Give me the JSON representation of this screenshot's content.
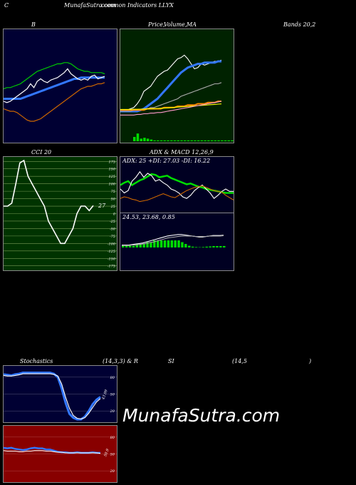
{
  "header": {
    "corner": "C",
    "site": "MunafaSutra.com",
    "overlay": "common Indicators LLYX"
  },
  "titles": {
    "bb": "B",
    "price_a": "Price,",
    "price_b": "Volume,",
    "price_c": "MA",
    "bands": "Bands 20,2",
    "cci": "CCI 20",
    "adx_macd": "ADX  & MACD 12,26,9",
    "stoch": "Stochastics",
    "stoch_params": "(14,3,3) & R",
    "rsi": "SI",
    "rsi_params": "(14,5",
    "rsi_close": ")"
  },
  "watermark": "MunafaSutra.com",
  "colors": {
    "bb_bg": "#000033",
    "price_bg": "#002200",
    "cci_bg": "#003300",
    "adx_bg": "#000022",
    "stoch_bg": "#000033",
    "rsi_bg": "#880000",
    "green": "#00dd00",
    "blue": "#3377ff",
    "orange": "#cc6600"
  },
  "chart_data": [
    {
      "id": "bollinger",
      "type": "line",
      "title": "B",
      "x": [
        0,
        1,
        2,
        3,
        4,
        5,
        6,
        7,
        8,
        9,
        10,
        11,
        12,
        13,
        14,
        15,
        16,
        17,
        18,
        19,
        20,
        21,
        22,
        23,
        24,
        25,
        26,
        27,
        28,
        29,
        30
      ],
      "series": [
        {
          "key": "upper",
          "values": [
            78,
            79,
            79,
            80,
            81,
            82,
            84,
            86,
            88,
            90,
            92,
            93,
            94,
            95,
            96,
            97,
            98,
            98,
            99,
            99,
            98,
            96,
            94,
            93,
            92,
            92,
            91,
            91,
            91,
            91,
            90
          ],
          "color": "#00cc00"
        },
        {
          "key": "lower",
          "values": [
            62,
            61,
            60,
            60,
            59,
            57,
            55,
            53,
            52,
            52,
            53,
            54,
            56,
            58,
            60,
            62,
            64,
            66,
            68,
            70,
            72,
            74,
            76,
            78,
            79,
            80,
            80,
            81,
            82,
            82,
            83
          ],
          "color": "#cc6600"
        },
        {
          "key": "middle",
          "values": [
            70,
            70,
            70,
            70,
            70,
            70,
            71,
            72,
            73,
            74,
            75,
            76,
            77,
            78,
            79,
            80,
            81,
            82,
            83,
            84,
            85,
            86,
            86,
            87,
            87,
            87,
            87,
            87,
            87,
            87,
            87
          ],
          "color": "#3377ff"
        },
        {
          "key": "price",
          "values": [
            68,
            67,
            68,
            70,
            72,
            74,
            76,
            78,
            82,
            79,
            84,
            86,
            84,
            83,
            85,
            86,
            87,
            89,
            91,
            94,
            90,
            88,
            86,
            85,
            86,
            85,
            88,
            89,
            86,
            87,
            88
          ],
          "color": "#ffffff"
        }
      ]
    },
    {
      "id": "price_ma",
      "type": "line",
      "title": "Price, Volume, MA",
      "x": [
        0,
        1,
        2,
        3,
        4,
        5,
        6,
        7,
        8,
        9,
        10,
        11,
        12,
        13,
        14,
        15,
        16,
        17,
        18,
        19,
        20,
        21,
        22,
        23,
        24,
        25,
        26,
        27,
        28,
        29,
        30
      ],
      "series": [
        {
          "key": "price",
          "values": [
            60,
            60,
            61,
            62,
            63,
            66,
            70,
            76,
            78,
            80,
            84,
            88,
            90,
            92,
            93,
            96,
            99,
            102,
            103,
            105,
            102,
            98,
            94,
            95,
            98,
            97,
            98,
            99,
            100,
            100,
            101
          ],
          "color": "#ffffff"
        },
        {
          "key": "ma_short",
          "values": [
            60,
            60,
            60,
            60,
            60,
            60,
            61,
            62,
            64,
            66,
            68,
            70,
            73,
            76,
            79,
            82,
            85,
            88,
            91,
            93,
            95,
            96,
            97,
            98,
            98,
            99,
            99,
            99,
            99,
            100,
            100
          ],
          "color": "#3377ff"
        },
        {
          "key": "ma_mid",
          "values": [
            60,
            60,
            60,
            60,
            61,
            61,
            61,
            62,
            62,
            63,
            63,
            64,
            65,
            66,
            67,
            68,
            69,
            70,
            72,
            73,
            74,
            75,
            76,
            77,
            78,
            79,
            80,
            81,
            82,
            82,
            83
          ],
          "color": "#aaaaaa"
        },
        {
          "key": "ma_orange",
          "values": [
            61,
            61,
            61,
            61,
            61,
            61,
            61,
            61,
            62,
            62,
            62,
            62,
            62,
            63,
            63,
            63,
            63,
            64,
            64,
            64,
            65,
            65,
            65,
            66,
            66,
            66,
            67,
            67,
            67,
            68,
            68
          ],
          "color": "#ff8800"
        },
        {
          "key": "ma_yellow",
          "values": [
            61.5,
            61.5,
            61.5,
            61.5,
            61.6,
            61.6,
            61.7,
            61.8,
            61.9,
            62,
            62.1,
            62.3,
            62.4,
            62.5,
            62.7,
            62.9,
            63.1,
            63.3,
            63.5,
            63.7,
            63.9,
            64.1,
            64.3,
            64.5,
            64.7,
            64.9,
            65.1,
            65.3,
            65.5,
            65.7,
            65.9
          ],
          "color": "#ffff00"
        },
        {
          "key": "ma_pink",
          "values": [
            57,
            57,
            57,
            57,
            57,
            57.5,
            57.5,
            58,
            58,
            58.5,
            58.5,
            59,
            59,
            59.5,
            60,
            60.5,
            61,
            61.5,
            62,
            62.5,
            63,
            63.5,
            64,
            64.5,
            65,
            65.5,
            66,
            66.5,
            67,
            67.5,
            68
          ],
          "color": "#ff99cc"
        }
      ],
      "volume": [
        5,
        9,
        3,
        4,
        3,
        2,
        1,
        1,
        1,
        1,
        1,
        1,
        1,
        1,
        1,
        1,
        1,
        1,
        1,
        1,
        1,
        1,
        1,
        1,
        1,
        1,
        1,
        1,
        1,
        1,
        1
      ]
    },
    {
      "id": "cci",
      "type": "line",
      "title": "CCI 20",
      "ylim": [
        -190,
        190
      ],
      "ticks": [
        175,
        150,
        125,
        100,
        75,
        50,
        25,
        0,
        -25,
        -50,
        -75,
        -100,
        -125,
        -150,
        -175
      ],
      "values": [
        25,
        25,
        35,
        100,
        170,
        178,
        125,
        100,
        75,
        50,
        25,
        -25,
        -50,
        -75,
        -100,
        -100,
        -75,
        -50,
        0,
        25,
        25,
        10,
        27
      ],
      "last_label": "27"
    },
    {
      "id": "adx",
      "type": "line",
      "title": "ADX: 25 +DI: 27.03 -DI: 16.22",
      "series": [
        {
          "key": "adx",
          "values": [
            35,
            38,
            40,
            35,
            38,
            41,
            43,
            46,
            49,
            48,
            45,
            46,
            47,
            44,
            42,
            40,
            38,
            36,
            37,
            35,
            33,
            32,
            30,
            29,
            28,
            27,
            26,
            25,
            25,
            25
          ],
          "color": "#00dd00"
        },
        {
          "key": "plus_di",
          "values": [
            30,
            25,
            28,
            40,
            45,
            52,
            45,
            50,
            47,
            40,
            42,
            38,
            35,
            30,
            28,
            25,
            20,
            18,
            22,
            28,
            32,
            35,
            30,
            25,
            18,
            22,
            27,
            30,
            27,
            27
          ],
          "color": "#ffffff"
        },
        {
          "key": "minus_di",
          "values": [
            18,
            20,
            19,
            17,
            16,
            14,
            15,
            16,
            18,
            20,
            22,
            24,
            22,
            20,
            19,
            22,
            25,
            28,
            30,
            32,
            33,
            34,
            32,
            30,
            28,
            27,
            26,
            22,
            19,
            16
          ],
          "color": "#cc6600"
        }
      ]
    },
    {
      "id": "macd",
      "type": "line",
      "title": "24.53,  23.68,  0.85",
      "series": [
        {
          "key": "macd",
          "values": [
            5,
            5,
            5,
            6,
            7,
            8,
            9,
            11,
            13,
            15,
            17,
            19,
            21,
            23,
            24,
            25,
            26,
            26,
            25,
            24,
            23,
            22,
            21,
            21,
            22,
            23,
            24,
            24,
            24,
            24.5
          ],
          "color": "#ffffff"
        },
        {
          "key": "signal",
          "values": [
            4,
            4,
            4,
            5,
            5,
            6,
            7,
            8,
            10,
            11,
            13,
            15,
            17,
            19,
            20,
            21,
            22,
            23,
            23,
            23,
            23,
            22,
            22,
            22,
            22,
            23,
            23,
            23,
            23,
            23.7
          ],
          "color": "#aaaaaa"
        }
      ],
      "histogram": [
        1,
        1,
        1,
        1,
        2,
        2,
        2,
        3,
        3,
        4,
        4,
        4,
        4,
        4,
        4,
        4,
        4,
        3,
        2,
        1,
        0.5,
        0.3,
        0.2,
        0.3,
        0.5,
        0.6,
        0.8,
        0.8,
        0.8,
        0.85
      ]
    },
    {
      "id": "stochastics",
      "type": "line",
      "title": "Stochastics (14,3,3)",
      "ticks": [
        80,
        50,
        20
      ],
      "series": [
        {
          "key": "k",
          "values": [
            85,
            84,
            83,
            85,
            86,
            88,
            88,
            88,
            88,
            88,
            88,
            88,
            88,
            86,
            80,
            60,
            35,
            15,
            8,
            5,
            5,
            10,
            20,
            32,
            40,
            45
          ],
          "color": "#3377ff"
        },
        {
          "key": "d",
          "values": [
            83,
            82,
            82,
            83,
            84,
            86,
            86,
            86,
            86,
            86,
            86,
            86,
            86,
            85,
            82,
            68,
            45,
            25,
            12,
            7,
            6,
            8,
            16,
            26,
            36,
            42
          ],
          "color": "#ffffff"
        }
      ],
      "last_label": "43.99"
    },
    {
      "id": "rsi",
      "type": "line",
      "title": "RSI (14,5)",
      "ticks": [
        80,
        50,
        20
      ],
      "series": [
        {
          "key": "rsi",
          "values": [
            61,
            60,
            61,
            59,
            58,
            57,
            58,
            60,
            61,
            60,
            60,
            58,
            58,
            56,
            54,
            53,
            53,
            52,
            52,
            53,
            52,
            52,
            52,
            53,
            52,
            52
          ],
          "color": "#3377ff"
        },
        {
          "key": "rsi_ma",
          "values": [
            56,
            55,
            55,
            55,
            54,
            54,
            55,
            55,
            56,
            56,
            56,
            55,
            55,
            54,
            53,
            53,
            52,
            52,
            52,
            52,
            52,
            52,
            52,
            52,
            52,
            51
          ],
          "color": "#ffffff"
        }
      ],
      "last_label": "50.9"
    }
  ]
}
